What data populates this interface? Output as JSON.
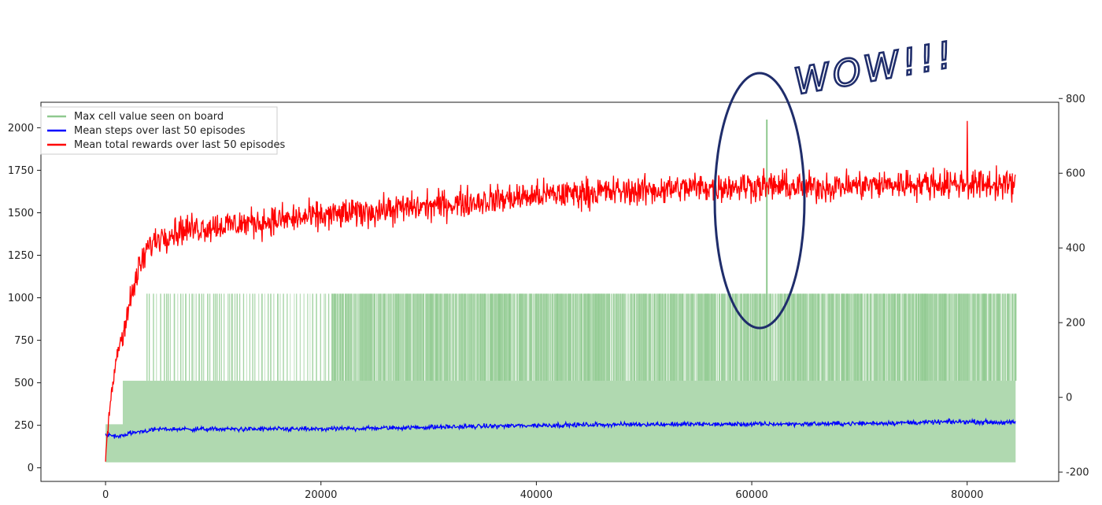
{
  "chart_data": {
    "type": "line",
    "title": "",
    "xlabel": "",
    "ylabel": "",
    "xlim": [
      -6000,
      88500
    ],
    "ylim_left": [
      -80,
      2150
    ],
    "ylim_right": [
      -225,
      790
    ],
    "x_ticks": [
      0,
      20000,
      40000,
      60000,
      80000
    ],
    "x_tick_labels": [
      "0",
      "20000",
      "40000",
      "60000",
      "80000"
    ],
    "y_left_ticks": [
      0,
      250,
      500,
      750,
      1000,
      1250,
      1500,
      1750,
      2000
    ],
    "y_left_tick_labels": [
      "0",
      "250",
      "500",
      "750",
      "1000",
      "1250",
      "1500",
      "1750",
      "2000"
    ],
    "y_right_ticks": [
      -200,
      0,
      200,
      400,
      600,
      800
    ],
    "y_right_tick_labels": [
      "-200",
      "0",
      "200",
      "400",
      "600",
      "800"
    ],
    "legend_position": "top-left",
    "x_end": 84500,
    "series": [
      {
        "name": "Max cell value seen on board",
        "axis": "left",
        "color": "#8fc98f",
        "levels": [
          32,
          64,
          128,
          256,
          512,
          1024,
          2048
        ],
        "segments": [
          {
            "x0": 0,
            "x1": 1600,
            "low": 32,
            "high": 256
          },
          {
            "x0": 1600,
            "x1": 84500,
            "low": 32,
            "high": 512
          }
        ],
        "peaks_1024_density": [
          {
            "x0": 3800,
            "x1": 21000,
            "density": "sparse"
          },
          {
            "x0": 21000,
            "x1": 84500,
            "density": "dense"
          }
        ],
        "peak_2048": {
          "x": 61400,
          "y": 2048
        }
      },
      {
        "name": "Mean steps over last 50 episodes",
        "axis": "right",
        "color": "#0000ff",
        "trend": [
          [
            0,
            -100
          ],
          [
            1000,
            -105
          ],
          [
            3000,
            -92
          ],
          [
            5000,
            -85
          ],
          [
            10000,
            -85
          ],
          [
            20000,
            -85
          ],
          [
            30000,
            -80
          ],
          [
            40000,
            -75
          ],
          [
            50000,
            -72
          ],
          [
            60000,
            -72
          ],
          [
            70000,
            -70
          ],
          [
            80000,
            -65
          ],
          [
            84500,
            -68
          ]
        ],
        "noise_amplitude": 9
      },
      {
        "name": "Mean total rewards over last 50 episodes",
        "axis": "left",
        "color": "#ff0000",
        "trend": [
          [
            0,
            60
          ],
          [
            300,
            300
          ],
          [
            1000,
            650
          ],
          [
            2000,
            900
          ],
          [
            3000,
            1150
          ],
          [
            4000,
            1300
          ],
          [
            5000,
            1360
          ],
          [
            7000,
            1400
          ],
          [
            10000,
            1420
          ],
          [
            15000,
            1450
          ],
          [
            20000,
            1480
          ],
          [
            25000,
            1510
          ],
          [
            30000,
            1540
          ],
          [
            35000,
            1570
          ],
          [
            40000,
            1600
          ],
          [
            45000,
            1620
          ],
          [
            50000,
            1630
          ],
          [
            55000,
            1650
          ],
          [
            60000,
            1660
          ],
          [
            65000,
            1650
          ],
          [
            70000,
            1660
          ],
          [
            75000,
            1670
          ],
          [
            80000,
            1670
          ],
          [
            84500,
            1665
          ]
        ],
        "noise_amplitude": 130,
        "max_peak": {
          "x": 80000,
          "y": 2040
        }
      }
    ]
  },
  "annotation": {
    "text": "WOW!!!",
    "color": "#1f2d6b",
    "ellipse_center_x": 61500,
    "ellipse_center_y": 1470
  }
}
